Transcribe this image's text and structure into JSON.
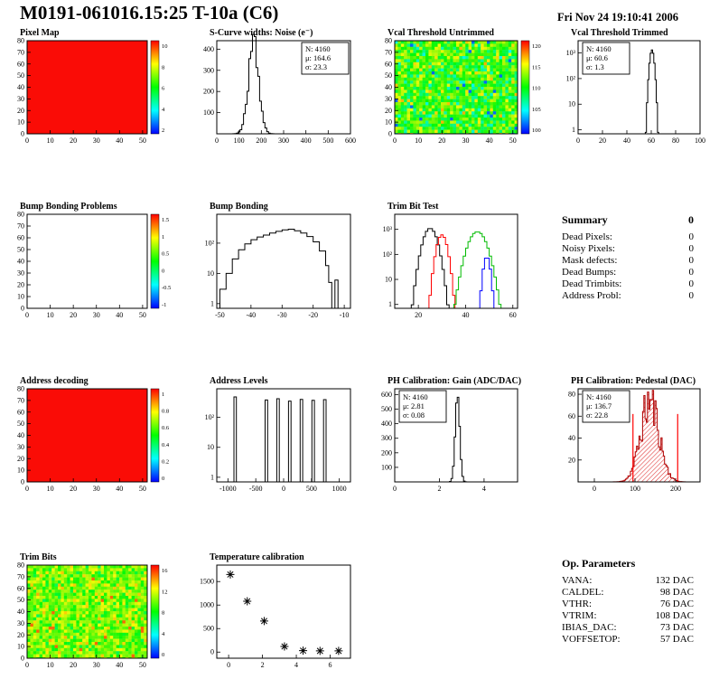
{
  "header": {
    "title": "M0191-061016.15:25 T-10a (C6)",
    "date": "Fri Nov 24 19:10:41 2006"
  },
  "summary": {
    "heading": "Summary",
    "total": "0",
    "rows": [
      {
        "label": "Dead Pixels:",
        "value": "0"
      },
      {
        "label": "Noisy Pixels:",
        "value": "0"
      },
      {
        "label": "Mask defects:",
        "value": "0"
      },
      {
        "label": "Dead Bumps:",
        "value": "0"
      },
      {
        "label": "Dead Trimbits:",
        "value": "0"
      },
      {
        "label": "Address Probl:",
        "value": "0"
      }
    ]
  },
  "op_parameters": {
    "heading": "Op. Parameters",
    "rows": [
      {
        "label": "VANA:",
        "value": "132 DAC"
      },
      {
        "label": "CALDEL:",
        "value": "98 DAC"
      },
      {
        "label": "VTHR:",
        "value": "76 DAC"
      },
      {
        "label": "VTRIM:",
        "value": "108 DAC"
      },
      {
        "label": "IBIAS_DAC:",
        "value": "73 DAC"
      },
      {
        "label": "VOFFSETOP:",
        "value": "57 DAC"
      }
    ]
  },
  "chart_data": [
    {
      "id": "pixel-map",
      "title": "Pixel Map",
      "type": "heatmap",
      "mode": "uniform",
      "value_color": "#fa0c06",
      "xlim": [
        0,
        52
      ],
      "ylim": [
        0,
        80
      ],
      "x_ticks": [
        0,
        10,
        20,
        30,
        40,
        50
      ],
      "y_ticks": [
        0,
        10,
        20,
        30,
        40,
        50,
        60,
        70,
        80
      ],
      "colorbar": {
        "labels": [
          "10",
          "8",
          "6",
          "4",
          "2"
        ]
      }
    },
    {
      "id": "scurve-noise",
      "title": "S-Curve widths: Noise (e⁻)",
      "type": "hist",
      "xlim": [
        0,
        600
      ],
      "ylim": [
        0,
        440
      ],
      "x_ticks": [
        0,
        100,
        200,
        300,
        400,
        500,
        600
      ],
      "y_ticks": [
        100,
        200,
        300,
        400
      ],
      "series": [
        {
          "kind": "gauss",
          "color": "#000000",
          "mean": 164.6,
          "sigma": 23.3,
          "peak": 420,
          "binw": 8,
          "jitter": 0.2,
          "seed": 3
        }
      ],
      "stats": {
        "pos": "tr",
        "lines": [
          {
            "text": "N: 4160"
          },
          {
            "text": "μ: 164.6"
          },
          {
            "text": "σ: 23.3"
          }
        ]
      }
    },
    {
      "id": "vcal-untrimmed",
      "title": "Vcal Threshold Untrimmed",
      "type": "heatmap",
      "mode": "noise",
      "noise": {
        "base": 0.55,
        "amp": 0.3,
        "speckle": -0.45,
        "seed": 7
      },
      "xlim": [
        0,
        52
      ],
      "ylim": [
        0,
        80
      ],
      "x_ticks": [
        0,
        10,
        20,
        30,
        40,
        50
      ],
      "y_ticks": [
        0,
        10,
        20,
        30,
        40,
        50,
        60,
        70,
        80
      ],
      "colorbar": {
        "labels": [
          "120",
          "115",
          "110",
          "105",
          "100"
        ]
      }
    },
    {
      "id": "vcal-trimmed",
      "title": "Vcal Threshold Trimmed",
      "type": "hist",
      "ylog": true,
      "xlim": [
        0,
        100
      ],
      "ylim": [
        0.7,
        3000
      ],
      "x_ticks": [
        0,
        20,
        40,
        60,
        80,
        100
      ],
      "y_ticks_log": [
        1,
        10,
        100,
        1000
      ],
      "series": [
        {
          "kind": "gauss",
          "color": "#000000",
          "mean": 60.6,
          "sigma": 1.3,
          "peak": 1300,
          "binw": 1
        }
      ],
      "stats": {
        "pos": "tl",
        "lines": [
          {
            "text": "N: 4160"
          },
          {
            "text": "μ: 60.6"
          },
          {
            "text": "σ: 1.3"
          }
        ]
      }
    },
    {
      "id": "bump-problems",
      "title": "Bump Bonding Problems",
      "type": "heatmap",
      "mode": "empty",
      "xlim": [
        0,
        52
      ],
      "ylim": [
        0,
        80
      ],
      "x_ticks": [
        0,
        10,
        20,
        30,
        40,
        50
      ],
      "y_ticks": [
        0,
        10,
        20,
        30,
        40,
        50,
        60,
        70,
        80
      ],
      "colorbar": {
        "labels": [
          "1.5",
          "1",
          "0.5",
          "0",
          "-0.5",
          "-1"
        ]
      }
    },
    {
      "id": "bump-bonding",
      "title": "Bump Bonding",
      "type": "hist",
      "ylog": true,
      "xlim": [
        -51,
        -8
      ],
      "ylim": [
        0.7,
        900
      ],
      "x_ticks": [
        -50,
        -40,
        -30,
        -20,
        -10
      ],
      "y_ticks_log": [
        1,
        10,
        100
      ],
      "series": [
        {
          "kind": "steps",
          "color": "#000000",
          "points": [
            [
              -50,
              3
            ],
            [
              -48,
              10
            ],
            [
              -46,
              30
            ],
            [
              -44,
              60
            ],
            [
              -42,
              95
            ],
            [
              -40,
              130
            ],
            [
              -38,
              160
            ],
            [
              -36,
              185
            ],
            [
              -34,
              215
            ],
            [
              -32,
              245
            ],
            [
              -30,
              275
            ],
            [
              -28,
              290
            ],
            [
              -26,
              255
            ],
            [
              -24,
              215
            ],
            [
              -22,
              165
            ],
            [
              -20,
              110
            ],
            [
              -18,
              55
            ],
            [
              -16,
              18
            ],
            [
              -15,
              5
            ],
            [
              -14,
              0
            ],
            [
              -13,
              6
            ],
            [
              -12,
              0
            ]
          ]
        }
      ]
    },
    {
      "id": "trimbit-test",
      "title": "Trim Bit Test",
      "type": "hist",
      "ylog": true,
      "xlim": [
        10,
        62
      ],
      "ylim": [
        0.7,
        4000
      ],
      "x_ticks": [
        20,
        40,
        60
      ],
      "y_ticks_log": [
        1,
        10,
        100,
        1000
      ],
      "series": [
        {
          "kind": "gauss",
          "color": "#000000",
          "mean": 25,
          "sigma": 2.0,
          "peak": 1100,
          "binw": 1
        },
        {
          "kind": "gauss",
          "color": "#ff0000",
          "mean": 30,
          "sigma": 1.5,
          "peak": 600,
          "binw": 1
        },
        {
          "kind": "gauss",
          "color": "#00bb00",
          "mean": 45,
          "sigma": 2.6,
          "peak": 800,
          "binw": 1
        },
        {
          "kind": "gauss",
          "color": "#0000ff",
          "mean": 49,
          "sigma": 1.0,
          "peak": 80,
          "binw": 1
        }
      ]
    },
    {
      "id": "address-decoding",
      "title": "Address decoding",
      "type": "heatmap",
      "mode": "uniform",
      "value_color": "#fa0c06",
      "xlim": [
        0,
        52
      ],
      "ylim": [
        0,
        80
      ],
      "x_ticks": [
        0,
        10,
        20,
        30,
        40,
        50
      ],
      "y_ticks": [
        0,
        10,
        20,
        30,
        40,
        50,
        60,
        70,
        80
      ],
      "colorbar": {
        "labels": [
          "1",
          "0.8",
          "0.6",
          "0.4",
          "0.2",
          "0"
        ]
      }
    },
    {
      "id": "address-levels",
      "title": "Address Levels",
      "type": "hist",
      "ylog": true,
      "xlim": [
        -1200,
        1200
      ],
      "ylim": [
        0.7,
        900
      ],
      "x_ticks": [
        -1000,
        -500,
        0,
        500,
        1000
      ],
      "y_ticks_log": [
        1,
        10,
        100
      ],
      "series": [
        {
          "kind": "spikes",
          "color": "#000000",
          "width": 45,
          "spikes": [
            [
              -870,
              480
            ],
            [
              -310,
              380
            ],
            [
              -100,
              420
            ],
            [
              110,
              350
            ],
            [
              320,
              400
            ],
            [
              530,
              370
            ],
            [
              740,
              390
            ]
          ]
        }
      ]
    },
    {
      "id": "ph-gain",
      "title": "PH Calibration: Gain (ADC/DAC)",
      "type": "hist",
      "xlim": [
        0,
        5.5
      ],
      "ylim": [
        0,
        640
      ],
      "x_ticks": [
        0,
        2,
        4
      ],
      "y_ticks": [
        100,
        200,
        300,
        400,
        500,
        600
      ],
      "series": [
        {
          "kind": "gauss",
          "color": "#000000",
          "mean": 2.81,
          "sigma": 0.1,
          "peak": 600,
          "binw": 0.07
        }
      ],
      "stats": {
        "pos": "tl",
        "lines": [
          {
            "text": "N: 4160"
          },
          {
            "text": "μ: 2.81"
          },
          {
            "text": "σ: 0.08"
          }
        ]
      }
    },
    {
      "id": "ph-pedestal",
      "title": "PH Calibration: Pedestal (DAC)",
      "type": "hist",
      "xlim": [
        -40,
        260
      ],
      "ylim": [
        0,
        85
      ],
      "x_ticks": [
        0,
        100,
        200
      ],
      "y_ticks": [
        20,
        40,
        60,
        80
      ],
      "series": [
        {
          "kind": "gauss",
          "color": "#b00000",
          "fill": "hatch-red",
          "mean": 136.7,
          "sigma": 22.8,
          "peak": 73,
          "binw": 3,
          "jitter": 0.3,
          "seed": 11
        }
      ],
      "cut_lines": {
        "color": "#ff0000",
        "x": [
          95,
          205
        ],
        "height": 62
      },
      "stats": {
        "pos": "tl",
        "lines": [
          {
            "text": "N: 4160"
          },
          {
            "text": "μ: 136.7",
            "color": "#ff0000"
          },
          {
            "text": "σ: 22.8",
            "color": "#ff0000"
          }
        ]
      }
    },
    {
      "id": "trim-bits",
      "title": "Trim Bits",
      "type": "heatmap",
      "mode": "noise",
      "noise": {
        "base": 0.62,
        "amp": 0.22,
        "speckle": 0.28,
        "seed": 21
      },
      "xlim": [
        0,
        52
      ],
      "ylim": [
        0,
        80
      ],
      "x_ticks": [
        0,
        10,
        20,
        30,
        40,
        50
      ],
      "y_ticks": [
        0,
        10,
        20,
        30,
        40,
        50,
        60,
        70,
        80
      ],
      "colorbar": {
        "labels": [
          "16",
          "12",
          "8",
          "4",
          "0"
        ]
      }
    },
    {
      "id": "temp-cal",
      "title": "Temperature calibration",
      "type": "scatter",
      "xlim": [
        -0.7,
        7.2
      ],
      "ylim": [
        -130,
        1850
      ],
      "x_ticks": [
        0,
        2,
        4,
        6
      ],
      "y_ticks": [
        0,
        500,
        1000,
        1500
      ],
      "marker": "asterisk",
      "points": [
        [
          0.1,
          1650
        ],
        [
          1.1,
          1080
        ],
        [
          2.1,
          660
        ],
        [
          3.3,
          120
        ],
        [
          4.4,
          30
        ],
        [
          5.4,
          25
        ],
        [
          6.5,
          25
        ]
      ]
    }
  ]
}
